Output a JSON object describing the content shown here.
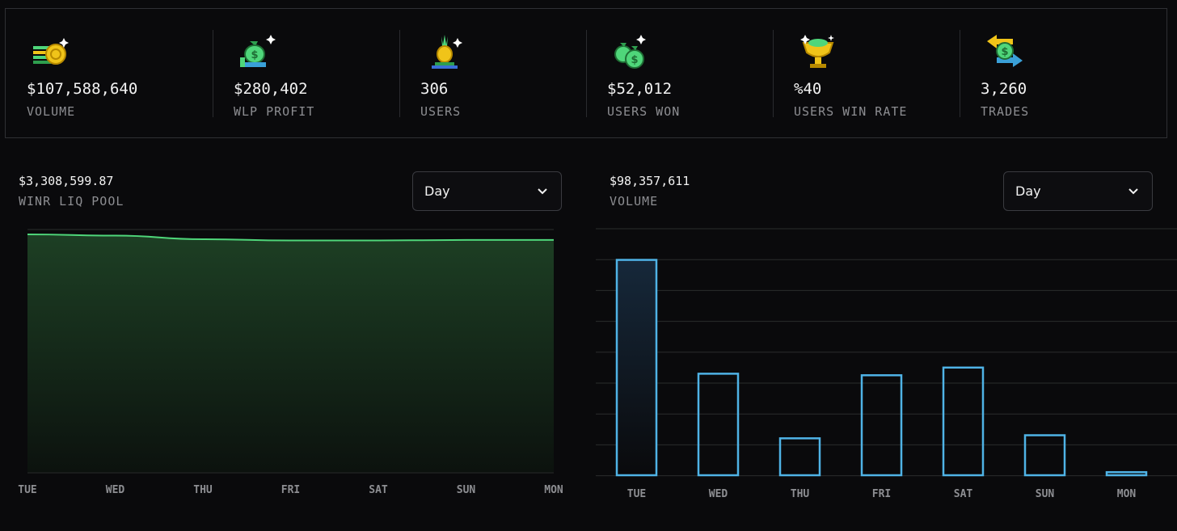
{
  "stats": [
    {
      "value": "$107,588,640",
      "label": "VOLUME",
      "icon": "coin-stack-icon"
    },
    {
      "value": "$280,402",
      "label": "WLP PROFIT",
      "icon": "money-bag-hand-icon"
    },
    {
      "value": "306",
      "label": "USERS",
      "icon": "pineapple-user-icon"
    },
    {
      "value": "$52,012",
      "label": "USERS WON",
      "icon": "money-bags-icon"
    },
    {
      "value": "%40",
      "label": "USERS WIN RATE",
      "icon": "trophy-icon"
    },
    {
      "value": "3,260",
      "label": "TRADES",
      "icon": "exchange-arrows-icon"
    }
  ],
  "left_panel": {
    "value": "$3,308,599.87",
    "label": "WINR LIQ POOL",
    "select_value": "Day"
  },
  "right_panel": {
    "value": "$98,357,611",
    "label": "VOLUME",
    "select_value": "Day"
  },
  "colors": {
    "line": "#4fd67a",
    "area_top": "#1d3f24",
    "bar_stroke": "#4fb3e6",
    "grid": "#2a2d2c",
    "axis_text": "#8d8e92"
  },
  "chart_data": [
    {
      "type": "area",
      "categories": [
        "TUE",
        "WED",
        "THU",
        "FRI",
        "SAT",
        "SUN",
        "MON"
      ],
      "values": [
        0.98,
        0.975,
        0.96,
        0.955,
        0.955,
        0.957,
        0.957
      ],
      "grid": true
    },
    {
      "type": "bar",
      "categories": [
        "TUE",
        "WED",
        "THU",
        "FRI",
        "SAT",
        "SUN",
        "MON"
      ],
      "values": [
        7.0,
        3.3,
        1.2,
        3.25,
        3.5,
        1.3,
        0.1
      ],
      "ylim": [
        0,
        8
      ],
      "grid": true
    }
  ]
}
